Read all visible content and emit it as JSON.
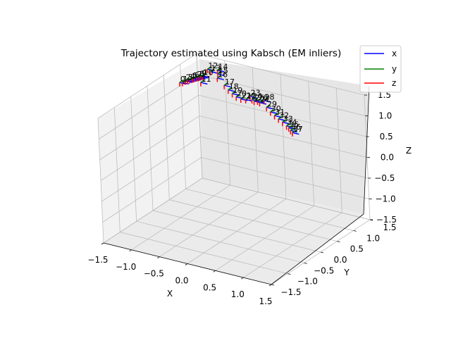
{
  "chart_data": {
    "type": "line3d",
    "title": "Trajectory estimated using Kabsch (EM inliers)",
    "xlabel": "X",
    "ylabel": "Y",
    "zlabel": "Z",
    "xlim": [
      -1.5,
      1.5
    ],
    "ylim": [
      -1.5,
      1.5
    ],
    "zlim": [
      -1.5,
      1.5
    ],
    "xticks": [
      "−1.5",
      "−1.0",
      "−0.5",
      "0.0",
      "0.5",
      "1.0",
      "1.5"
    ],
    "yticks": [
      "−1.5",
      "−1.0",
      "−0.5",
      "0.0",
      "0.5",
      "1.0",
      "1.5"
    ],
    "zticks": [
      "−1.5",
      "−1.0",
      "−0.5",
      "0.0",
      "0.5",
      "1.0",
      "1.5"
    ],
    "grid": true,
    "legend": {
      "placement": "top-right",
      "entries": [
        {
          "name": "x",
          "color": "#0000ff"
        },
        {
          "name": "y",
          "color": "#008000"
        },
        {
          "name": "z",
          "color": "#ff0000"
        }
      ]
    },
    "point_labels": [
      "0",
      "1",
      "2",
      "3",
      "4",
      "5",
      "6",
      "7",
      "8",
      "9",
      "10",
      "11",
      "12",
      "13",
      "14",
      "15",
      "16",
      "17",
      "18",
      "19",
      "20",
      "21",
      "22",
      "23",
      "24",
      "25",
      "26",
      "27",
      "28",
      "29",
      "30",
      "31",
      "32",
      "33",
      "34",
      "35",
      "36",
      "37"
    ],
    "points": [
      [
        -1.25,
        0.55,
        1.38
      ],
      [
        -1.2,
        0.55,
        1.4
      ],
      [
        -1.18,
        0.6,
        1.42
      ],
      [
        -1.15,
        0.62,
        1.43
      ],
      [
        -1.13,
        0.65,
        1.44
      ],
      [
        -1.1,
        0.68,
        1.45
      ],
      [
        -1.08,
        0.7,
        1.46
      ],
      [
        -1.05,
        0.73,
        1.47
      ],
      [
        -1.02,
        0.75,
        1.48
      ],
      [
        -1.0,
        0.78,
        1.49
      ],
      [
        -0.98,
        0.8,
        1.5
      ],
      [
        -0.96,
        0.7,
        1.4
      ],
      [
        -0.95,
        0.9,
        1.62
      ],
      [
        -0.9,
        0.9,
        1.58
      ],
      [
        -0.8,
        0.95,
        1.62
      ],
      [
        -0.78,
        0.92,
        1.55
      ],
      [
        -0.75,
        0.85,
        1.5
      ],
      [
        -0.6,
        0.8,
        1.4
      ],
      [
        -0.5,
        0.75,
        1.35
      ],
      [
        -0.4,
        0.7,
        1.32
      ],
      [
        -0.3,
        0.65,
        1.3
      ],
      [
        -0.2,
        0.62,
        1.3
      ],
      [
        -0.1,
        0.6,
        1.33
      ],
      [
        -0.05,
        0.65,
        1.4
      ],
      [
        0.0,
        0.62,
        1.35
      ],
      [
        0.05,
        0.6,
        1.34
      ],
      [
        0.1,
        0.62,
        1.35
      ],
      [
        0.15,
        0.6,
        1.34
      ],
      [
        0.2,
        0.65,
        1.38
      ],
      [
        0.3,
        0.55,
        1.3
      ],
      [
        0.4,
        0.5,
        1.25
      ],
      [
        0.5,
        0.45,
        1.22
      ],
      [
        0.6,
        0.4,
        1.2
      ],
      [
        0.7,
        0.35,
        1.18
      ],
      [
        0.8,
        0.3,
        1.15
      ],
      [
        0.85,
        0.28,
        1.13
      ],
      [
        0.9,
        0.25,
        1.1
      ],
      [
        0.95,
        0.22,
        1.08
      ]
    ]
  }
}
